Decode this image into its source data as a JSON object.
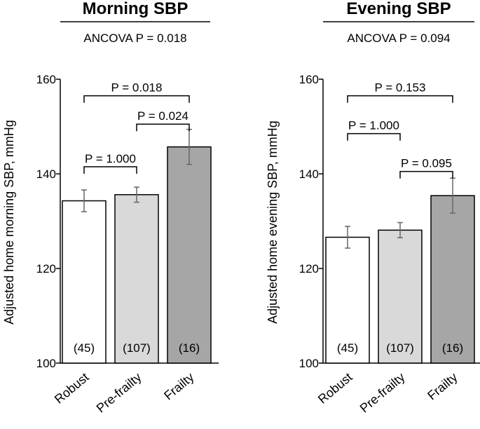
{
  "chart_data": [
    {
      "type": "bar",
      "title": "Morning SBP",
      "subtitle": "ANCOVA P = 0.018",
      "xlabel": "",
      "ylabel": "Adjusted home morning SBP, mmHg",
      "ylim": [
        100,
        160
      ],
      "yticks": [
        "100",
        "120",
        "140",
        "160"
      ],
      "categories": [
        "Robust",
        "Pre-frailty",
        "Frailty"
      ],
      "values": [
        134.3,
        135.6,
        145.7
      ],
      "errors": [
        2.3,
        1.6,
        3.7
      ],
      "counts": [
        "(45)",
        "(107)",
        "(16)"
      ],
      "colors": [
        "#ffffff",
        "#d9d9d9",
        "#a6a6a6"
      ],
      "comparisons": [
        {
          "from": 0,
          "to": 1,
          "y": 141.5,
          "label": "P = 1.000"
        },
        {
          "from": 1,
          "to": 2,
          "y": 150.5,
          "label": "P = 0.024"
        },
        {
          "from": 0,
          "to": 2,
          "y": 156.5,
          "label": "P = 0.018"
        }
      ]
    },
    {
      "type": "bar",
      "title": "Evening SBP",
      "subtitle": "ANCOVA P = 0.094",
      "xlabel": "",
      "ylabel": "Adjusted home evening SBP, mmHg",
      "ylim": [
        100,
        160
      ],
      "yticks": [
        "100",
        "120",
        "140",
        "160"
      ],
      "categories": [
        "Robust",
        "Pre-frailty",
        "Frailty"
      ],
      "values": [
        126.6,
        128.1,
        135.4
      ],
      "errors": [
        2.3,
        1.6,
        3.7
      ],
      "counts": [
        "(45)",
        "(107)",
        "(16)"
      ],
      "colors": [
        "#ffffff",
        "#d9d9d9",
        "#a6a6a6"
      ],
      "comparisons": [
        {
          "from": 0,
          "to": 1,
          "y": 148.5,
          "label": "P = 1.000"
        },
        {
          "from": 1,
          "to": 2,
          "y": 140.5,
          "label": "P = 0.095"
        },
        {
          "from": 0,
          "to": 2,
          "y": 156.5,
          "label": "P = 0.153"
        }
      ]
    }
  ]
}
